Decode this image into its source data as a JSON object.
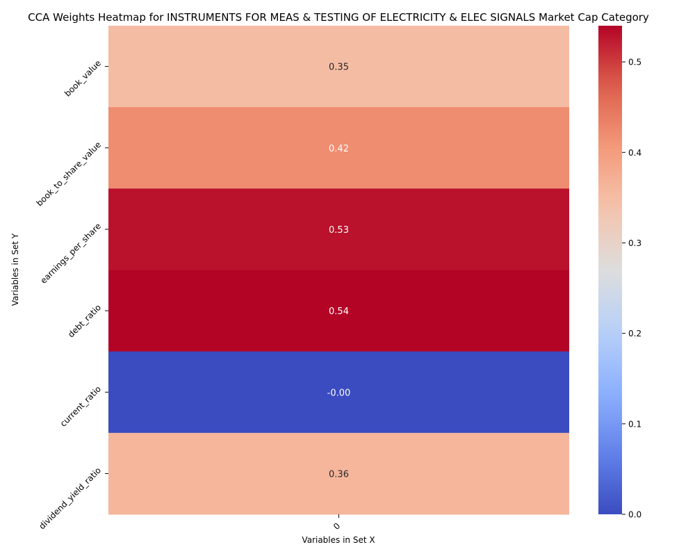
{
  "chart_data": {
    "type": "heatmap",
    "title": "CCA Weights Heatmap for INSTRUMENTS FOR MEAS & TESTING OF ELECTRICITY & ELEC SIGNALS Market Cap Category",
    "xlabel": "Variables in Set X",
    "ylabel": "Variables in Set Y",
    "x_categories": [
      "0"
    ],
    "y_categories": [
      "book_value",
      "book_to_share_value",
      "earnings_per_share",
      "debt_ratio",
      "current_ratio",
      "dividend_yield_ratio"
    ],
    "values": [
      [
        0.35
      ],
      [
        0.42
      ],
      [
        0.53
      ],
      [
        0.54
      ],
      [
        0.0
      ],
      [
        0.36
      ]
    ],
    "annotations": [
      [
        "0.35"
      ],
      [
        "0.42"
      ],
      [
        "0.53"
      ],
      [
        "0.54"
      ],
      [
        "-0.00"
      ],
      [
        "0.36"
      ]
    ],
    "colormap": "coolwarm",
    "color_range": [
      0.0,
      0.54
    ],
    "colorbar_ticks": [
      0.0,
      0.1,
      0.2,
      0.3,
      0.4,
      0.5
    ],
    "colorbar_tick_labels": [
      "0.0",
      "0.1",
      "0.2",
      "0.3",
      "0.4",
      "0.5"
    ],
    "colors": {
      "low": "#3b4cc0",
      "mid": "#dddddd",
      "high": "#b40426"
    },
    "legend": "colorbar-right",
    "grid": false
  }
}
